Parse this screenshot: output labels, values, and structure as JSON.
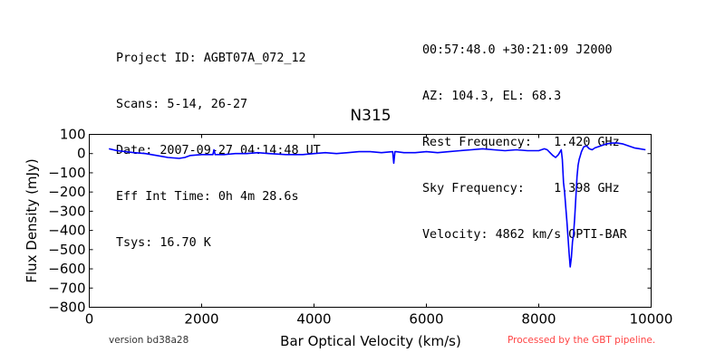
{
  "header": {
    "left_lines": [
      "Project ID: AGBT07A_072_12",
      "Scans: 5-14, 26-27",
      "Date: 2007-09-27 04:14:48 UT",
      "Eff Int Time: 0h 4m 28.6s",
      "Tsys: 16.70 K"
    ],
    "right_lines": [
      "00:57:48.0 +30:21:09 J2000",
      "AZ: 104.3, EL: 68.3",
      "Rest Frequency:   1.420 GHz",
      "Sky Frequency:    1.398 GHz",
      "Velocity: 4862 km/s OPTI-BAR"
    ]
  },
  "footer": {
    "version": "version bd38a28",
    "pipeline": "Processed by the GBT pipeline."
  },
  "colors": {
    "series": "#0000ff",
    "pipeline_text": "#ff4444"
  },
  "chart_data": {
    "type": "line",
    "title": "N315",
    "xlabel": "Bar Optical Velocity (km/s)",
    "ylabel": "Flux Density (mJy)",
    "xlim": [
      0,
      10000
    ],
    "ylim": [
      -800,
      100
    ],
    "xticks": [
      0,
      2000,
      4000,
      6000,
      8000,
      10000
    ],
    "yticks": [
      100,
      0,
      -100,
      -200,
      -300,
      -400,
      -500,
      -600,
      -700,
      -800
    ],
    "grid": false,
    "series": [
      {
        "color": "#0000ff",
        "x": [
          350,
          500,
          800,
          1000,
          1200,
          1400,
          1600,
          1700,
          1800,
          2000,
          2200,
          2220,
          2240,
          2400,
          2600,
          2800,
          3000,
          3200,
          3500,
          3800,
          4000,
          4200,
          4400,
          4600,
          4800,
          5000,
          5200,
          5400,
          5420,
          5440,
          5460,
          5600,
          5800,
          6000,
          6200,
          6400,
          6600,
          6800,
          7000,
          7200,
          7400,
          7600,
          7800,
          8000,
          8100,
          8150,
          8200,
          8250,
          8300,
          8350,
          8400,
          8420,
          8440,
          8460,
          8480,
          8500,
          8520,
          8540,
          8560,
          8580,
          8600,
          8620,
          8640,
          8660,
          8680,
          8700,
          8720,
          8740,
          8760,
          8800,
          8850,
          8900,
          8950,
          9000,
          9100,
          9200,
          9300,
          9400,
          9500,
          9600,
          9700,
          9800,
          9900
        ],
        "y": [
          25,
          15,
          5,
          0,
          -10,
          -20,
          -25,
          -20,
          -10,
          -5,
          -5,
          20,
          -5,
          -5,
          0,
          0,
          5,
          0,
          -5,
          -5,
          0,
          5,
          0,
          5,
          10,
          10,
          5,
          10,
          -50,
          10,
          10,
          5,
          5,
          10,
          5,
          10,
          15,
          20,
          25,
          20,
          15,
          20,
          15,
          15,
          25,
          20,
          5,
          -10,
          -20,
          -5,
          20,
          -30,
          -150,
          -200,
          -280,
          -350,
          -430,
          -520,
          -590,
          -540,
          -460,
          -420,
          -330,
          -230,
          -120,
          -60,
          -30,
          -10,
          10,
          35,
          40,
          25,
          20,
          30,
          40,
          50,
          55,
          55,
          50,
          40,
          30,
          25,
          20
        ]
      }
    ]
  }
}
